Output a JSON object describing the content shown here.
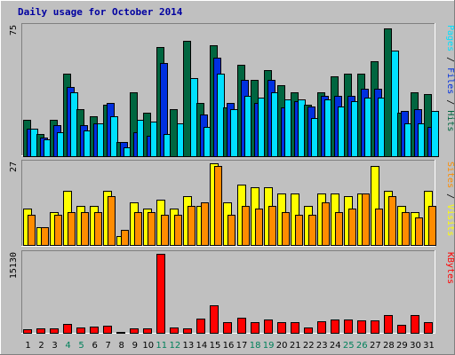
{
  "chart_data": {
    "type": "bar",
    "title": "Daily usage for October 2014",
    "categories": [
      "1",
      "2",
      "3",
      "4",
      "5",
      "6",
      "7",
      "8",
      "9",
      "10",
      "11",
      "12",
      "13",
      "14",
      "15",
      "16",
      "17",
      "18",
      "19",
      "20",
      "21",
      "22",
      "23",
      "24",
      "25",
      "26",
      "27",
      "28",
      "29",
      "30",
      "31"
    ],
    "weekend_days": [
      "4",
      "5",
      "11",
      "12",
      "18",
      "19",
      "25",
      "26"
    ],
    "panels": [
      {
        "name": "hits-files-pages",
        "max_label": "75",
        "ylim": [
          0,
          75
        ],
        "side_label_parts": [
          "Pages",
          " / ",
          "Files",
          " / ",
          "Hits"
        ],
        "series": [
          {
            "name": "Hits",
            "color": "#006640",
            "values": [
              21,
              13,
              21,
              48,
              27,
              23,
              30,
              8,
              37,
              25,
              63,
              27,
              67,
              31,
              64,
              28,
              53,
              44,
              50,
              41,
              37,
              30,
              37,
              46,
              48,
              48,
              55,
              74,
              25,
              37,
              36
            ]
          },
          {
            "name": "Files",
            "color": "#0030e0",
            "values": [
              16,
              11,
              18,
              40,
              18,
              19,
              31,
              8,
              14,
              12,
              54,
              0,
              0,
              24,
              57,
              31,
              44,
              31,
              44,
              28,
              32,
              29,
              35,
              35,
              35,
              39,
              39,
              0,
              26,
              27,
              17
            ]
          },
          {
            "name": "Pages",
            "color": "#00e0ff",
            "values": [
              16,
              10,
              14,
              37,
              15,
              19,
              23,
              5,
              21,
              20,
              13,
              19,
              45,
              17,
              48,
              27,
              35,
              34,
              37,
              33,
              33,
              22,
              33,
              29,
              32,
              34,
              34,
              61,
              19,
              19,
              26
            ]
          }
        ]
      },
      {
        "name": "visits-sites",
        "max_label": "27",
        "ylim": [
          0,
          27
        ],
        "side_label_parts": [
          "Sites",
          " / ",
          "Visits"
        ],
        "series": [
          {
            "name": "Visits",
            "color": "#ffff00",
            "values": [
              12,
              6,
              11,
              18,
              13,
              13,
              18,
              3,
              14,
              12,
              15,
              12,
              16,
              13,
              27,
              14,
              20,
              19,
              19,
              17,
              17,
              13,
              17,
              17,
              16,
              17,
              26,
              18,
              13,
              11,
              18
            ]
          },
          {
            "name": "Sites",
            "color": "#ff8c00",
            "values": [
              10,
              6,
              10,
              11,
              11,
              11,
              16,
              5,
              11,
              11,
              10,
              10,
              13,
              14,
              26,
              10,
              13,
              12,
              13,
              11,
              10,
              10,
              14,
              11,
              12,
              17,
              12,
              16,
              11,
              9,
              13
            ]
          }
        ]
      },
      {
        "name": "kbytes",
        "max_label": "15130",
        "ylim": [
          0,
          15130
        ],
        "side_label_parts": [
          "KBytes"
        ],
        "series": [
          {
            "name": "KBytes",
            "color": "#ff0000",
            "values": [
              680,
              900,
              920,
              1700,
              1060,
              1160,
              1360,
              240,
              810,
              880,
              15130,
              1060,
              920,
              2700,
              5300,
              2000,
              2850,
              2070,
              2550,
              2050,
              1960,
              1010,
              2180,
              2540,
              2530,
              2300,
              2360,
              3460,
              1520,
              3420,
              2050
            ]
          }
        ]
      }
    ]
  },
  "colors": {
    "background": "#c0c0c0",
    "title": "#0000a0",
    "weekday_label": "#000000",
    "weekend_label": "#00805a",
    "side_separator": "#000000"
  }
}
